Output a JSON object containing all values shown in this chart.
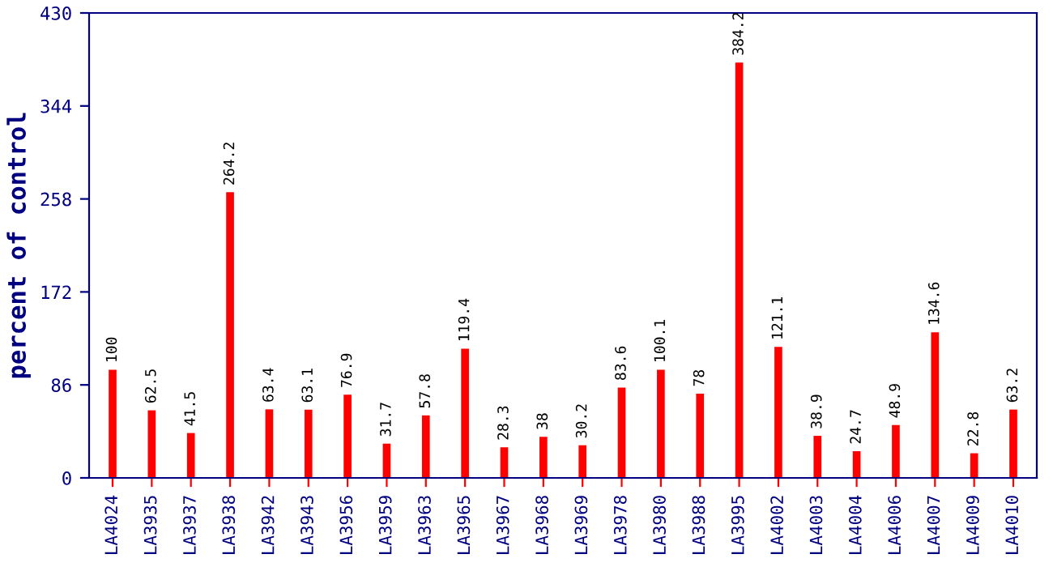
{
  "chart_data": {
    "type": "bar",
    "ylabel": "percent of control",
    "categories": [
      "LA4024",
      "LA3935",
      "LA3937",
      "LA3938",
      "LA3942",
      "LA3943",
      "LA3956",
      "LA3959",
      "LA3963",
      "LA3965",
      "LA3967",
      "LA3968",
      "LA3969",
      "LA3978",
      "LA3980",
      "LA3988",
      "LA3995",
      "LA4002",
      "LA4003",
      "LA4004",
      "LA4006",
      "LA4007",
      "LA4009",
      "LA4010"
    ],
    "values": [
      100,
      62.5,
      41.5,
      264.2,
      63.4,
      63.1,
      76.9,
      31.7,
      57.8,
      119.4,
      28.3,
      38,
      30.2,
      83.6,
      100.1,
      78,
      384.2,
      121.1,
      38.9,
      24.7,
      48.9,
      134.6,
      22.8,
      63.2
    ],
    "color": "#ff0000",
    "ylim": [
      0,
      430
    ],
    "yticks": [
      0,
      86,
      172,
      258,
      344,
      430
    ],
    "data_labels": true,
    "grid": false
  }
}
